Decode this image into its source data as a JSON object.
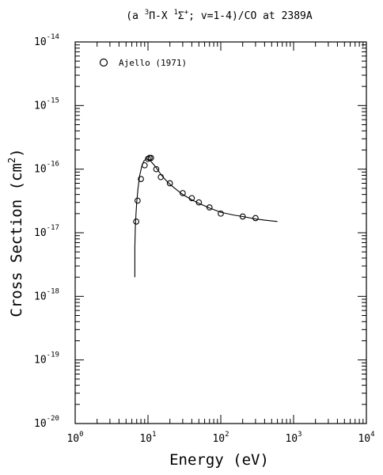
{
  "chart_data": {
    "type": "scatter",
    "title": {
      "prefix": "(a ",
      "sup1": "3",
      "mid": "Π-X ",
      "sup2": "1",
      "mid2": "Σ",
      "sup3": "+",
      "suffix": "; v=1-4)/CO at 2389A"
    },
    "xlabel": "Energy (eV)",
    "ylabel": {
      "text": "Cross Section (cm",
      "sup": "2",
      "close": ")"
    },
    "x_scale": "log",
    "y_scale": "log",
    "xlim": [
      1,
      10000
    ],
    "ylim": [
      1e-20,
      1e-14
    ],
    "x_ticks": [
      {
        "base": "10",
        "exp": "0",
        "value": 1
      },
      {
        "base": "10",
        "exp": "1",
        "value": 10
      },
      {
        "base": "10",
        "exp": "2",
        "value": 100
      },
      {
        "base": "10",
        "exp": "3",
        "value": 1000
      },
      {
        "base": "10",
        "exp": "4",
        "value": 10000
      }
    ],
    "y_ticks": [
      {
        "base": "10",
        "exp": "-14",
        "value": 1e-14
      },
      {
        "base": "10",
        "exp": "-15",
        "value": 1e-15
      },
      {
        "base": "10",
        "exp": "-16",
        "value": 1e-16
      },
      {
        "base": "10",
        "exp": "-17",
        "value": 1e-17
      },
      {
        "base": "10",
        "exp": "-18",
        "value": 1e-18
      },
      {
        "base": "10",
        "exp": "-19",
        "value": 1e-19
      },
      {
        "base": "10",
        "exp": "-20",
        "value": 1e-20
      }
    ],
    "grid": false,
    "legend": {
      "placement": "top-left",
      "entries": [
        {
          "label": "Ajello (1971)",
          "marker": "open-circle"
        }
      ]
    },
    "series": [
      {
        "name": "Ajello (1971)",
        "kind": "points",
        "marker": "open-circle",
        "x": [
          6.9,
          7.2,
          8.0,
          9.0,
          10.0,
          10.5,
          11.0,
          13.0,
          15.0,
          20.0,
          30.0,
          40.0,
          50.0,
          70.0,
          100.0,
          200.0,
          300.0
        ],
        "y": [
          1.5e-17,
          3.2e-17,
          7e-17,
          1.15e-16,
          1.45e-16,
          1.5e-16,
          1.5e-16,
          1e-16,
          7.5e-17,
          6e-17,
          4.2e-17,
          3.5e-17,
          3e-17,
          2.5e-17,
          2e-17,
          1.8e-17,
          1.7e-17
        ]
      },
      {
        "kind": "line",
        "x": [
          6.6,
          6.6,
          6.7,
          6.85,
          7.0,
          7.3,
          7.7,
          8.2,
          8.8,
          9.5,
          10.5,
          11.5,
          13.0,
          15.0,
          17.0,
          20.0,
          25.0,
          30.0,
          40.0,
          50.0,
          70.0,
          100.0,
          150.0,
          200.0,
          300.0,
          400.0,
          600.0
        ],
        "y": [
          2e-18,
          6e-18,
          1.2e-17,
          2e-17,
          3e-17,
          5e-17,
          8e-17,
          1.1e-16,
          1.35e-16,
          1.45e-16,
          1.4e-16,
          1.25e-16,
          1.05e-16,
          8.3e-17,
          7e-17,
          5.8e-17,
          4.7e-17,
          4e-17,
          3.3e-17,
          2.9e-17,
          2.45e-17,
          2.1e-17,
          1.9e-17,
          1.8e-17,
          1.65e-17,
          1.58e-17,
          1.5e-17
        ]
      }
    ]
  }
}
